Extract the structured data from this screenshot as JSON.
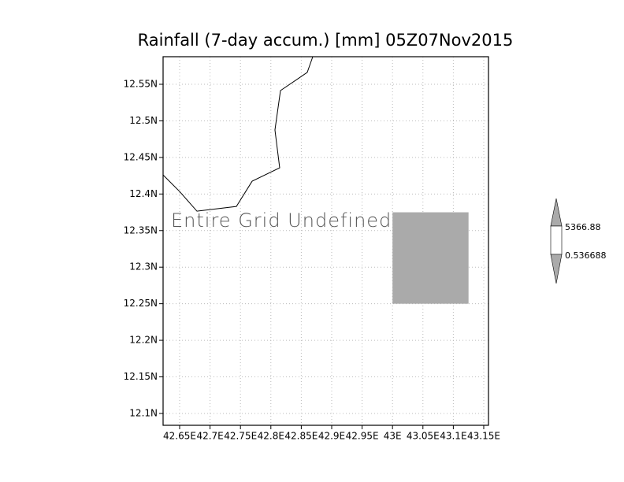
{
  "chart_data": {
    "type": "map",
    "title": "Rainfall (7-day accum.) [mm] 05Z07Nov2015",
    "annotation": "Entire Grid Undefined",
    "xlim": [
      42.6228,
      43.1578
    ],
    "ylim": [
      12.0838,
      12.5877
    ],
    "xticks": [
      {
        "value": 42.65,
        "label": "42.65E"
      },
      {
        "value": 42.7,
        "label": "42.7E"
      },
      {
        "value": 42.75,
        "label": "42.75E"
      },
      {
        "value": 42.8,
        "label": "42.8E"
      },
      {
        "value": 42.85,
        "label": "42.85E"
      },
      {
        "value": 42.9,
        "label": "42.9E"
      },
      {
        "value": 42.95,
        "label": "42.95E"
      },
      {
        "value": 43.0,
        "label": "43E"
      },
      {
        "value": 43.05,
        "label": "43.05E"
      },
      {
        "value": 43.1,
        "label": "43.1E"
      },
      {
        "value": 43.15,
        "label": "43.15E"
      }
    ],
    "yticks": [
      {
        "value": 12.1,
        "label": "12.1N"
      },
      {
        "value": 12.15,
        "label": "12.15N"
      },
      {
        "value": 12.2,
        "label": "12.2N"
      },
      {
        "value": 12.25,
        "label": "12.25N"
      },
      {
        "value": 12.3,
        "label": "12.3N"
      },
      {
        "value": 12.35,
        "label": "12.35N"
      },
      {
        "value": 12.4,
        "label": "12.4N"
      },
      {
        "value": 12.45,
        "label": "12.45N"
      },
      {
        "value": 12.5,
        "label": "12.5N"
      },
      {
        "value": 12.55,
        "label": "12.55N"
      }
    ],
    "grid": true,
    "coastline": {
      "color": "#000000",
      "x": [
        42.6228,
        42.65,
        42.6785,
        42.7433,
        42.7692,
        42.8145,
        42.8067,
        42.8158,
        42.8598,
        42.8689
      ],
      "y": [
        12.4261,
        12.4034,
        12.3765,
        12.383,
        12.4175,
        12.4358,
        12.4875,
        12.5414,
        12.5662,
        12.5877
      ]
    },
    "cell": {
      "color": "#aaaaaa",
      "lon": [
        43.0,
        43.125
      ],
      "lat": [
        12.25,
        12.375
      ]
    },
    "colorbar": {
      "levels": [
        5366.88,
        0.536688
      ],
      "colors": [
        "#aaaaaa",
        "#ffffff",
        "#aaaaaa"
      ]
    }
  }
}
